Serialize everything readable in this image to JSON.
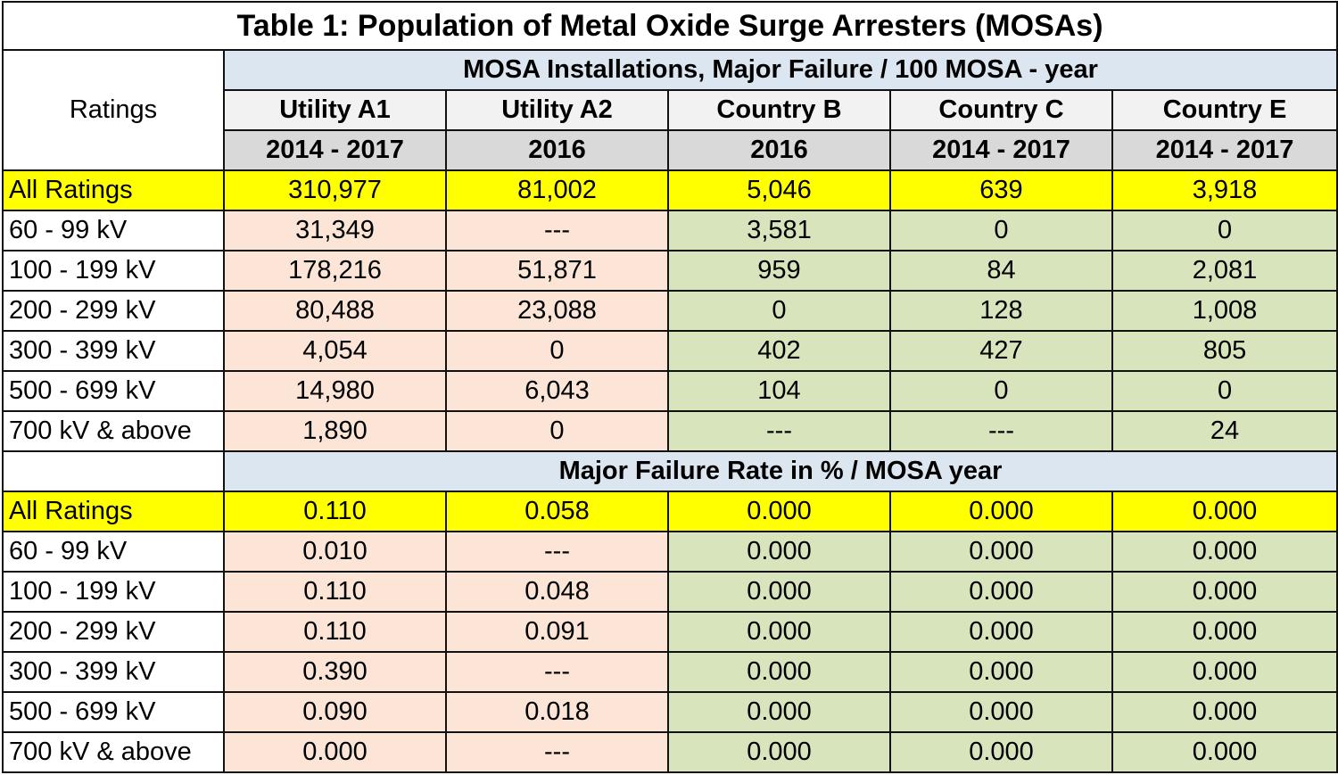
{
  "title": "Table 1: Population of Metal Oxide Surge Arresters (MOSAs)",
  "ratings_header": "Ratings",
  "columns": [
    {
      "name": "Utility A1",
      "period": "2014 - 2017",
      "tone": "peach"
    },
    {
      "name": "Utility A2",
      "period": "2016",
      "tone": "peach"
    },
    {
      "name": "Country B",
      "period": "2016",
      "tone": "green"
    },
    {
      "name": "Country C",
      "period": "2014 - 2017",
      "tone": "green"
    },
    {
      "name": "Country E",
      "period": "2014 - 2017",
      "tone": "green"
    }
  ],
  "colors": {
    "highlight": "#ffff00",
    "utility_fill": "#fce4d6",
    "country_fill": "#d8e4bc",
    "section_header_fill": "#dce6f1",
    "column_header_fill": "#f2f2f2",
    "period_header_fill": "#d9d9d9"
  },
  "sections": [
    {
      "heading": "MOSA Installations, Major Failure  / 100 MOSA - year",
      "rows": [
        {
          "label": "All Ratings",
          "highlight": true,
          "values": [
            "310,977",
            "81,002",
            "5,046",
            "639",
            "3,918"
          ]
        },
        {
          "label": "60 - 99 kV",
          "values": [
            "31,349",
            "---",
            "3,581",
            "0",
            "0"
          ]
        },
        {
          "label": "100 - 199 kV",
          "values": [
            "178,216",
            "51,871",
            "959",
            "84",
            "2,081"
          ]
        },
        {
          "label": "200 - 299 kV",
          "values": [
            "80,488",
            "23,088",
            "0",
            "128",
            "1,008"
          ]
        },
        {
          "label": "300 - 399 kV",
          "values": [
            "4,054",
            "0",
            "402",
            "427",
            "805"
          ]
        },
        {
          "label": "500 - 699 kV",
          "values": [
            "14,980",
            "6,043",
            "104",
            "0",
            "0"
          ]
        },
        {
          "label": "700 kV & above",
          "values": [
            "1,890",
            "0",
            "---",
            "---",
            "24"
          ]
        }
      ]
    },
    {
      "heading": "Major Failure Rate in %  / MOSA year",
      "rows": [
        {
          "label": "All Ratings",
          "highlight": true,
          "values": [
            "0.110",
            "0.058",
            "0.000",
            "0.000",
            "0.000"
          ]
        },
        {
          "label": "60 - 99 kV",
          "values": [
            "0.010",
            "---",
            "0.000",
            "0.000",
            "0.000"
          ]
        },
        {
          "label": "100 - 199 kV",
          "values": [
            "0.110",
            "0.048",
            "0.000",
            "0.000",
            "0.000"
          ]
        },
        {
          "label": "200 - 299 kV",
          "values": [
            "0.110",
            "0.091",
            "0.000",
            "0.000",
            "0.000"
          ]
        },
        {
          "label": "300 - 399 kV",
          "values": [
            "0.390",
            "---",
            "0.000",
            "0.000",
            "0.000"
          ]
        },
        {
          "label": "500 - 699 kV",
          "values": [
            "0.090",
            "0.018",
            "0.000",
            "0.000",
            "0.000"
          ]
        },
        {
          "label": "700 kV & above",
          "values": [
            "0.000",
            "---",
            "0.000",
            "0.000",
            "0.000"
          ]
        }
      ]
    }
  ]
}
